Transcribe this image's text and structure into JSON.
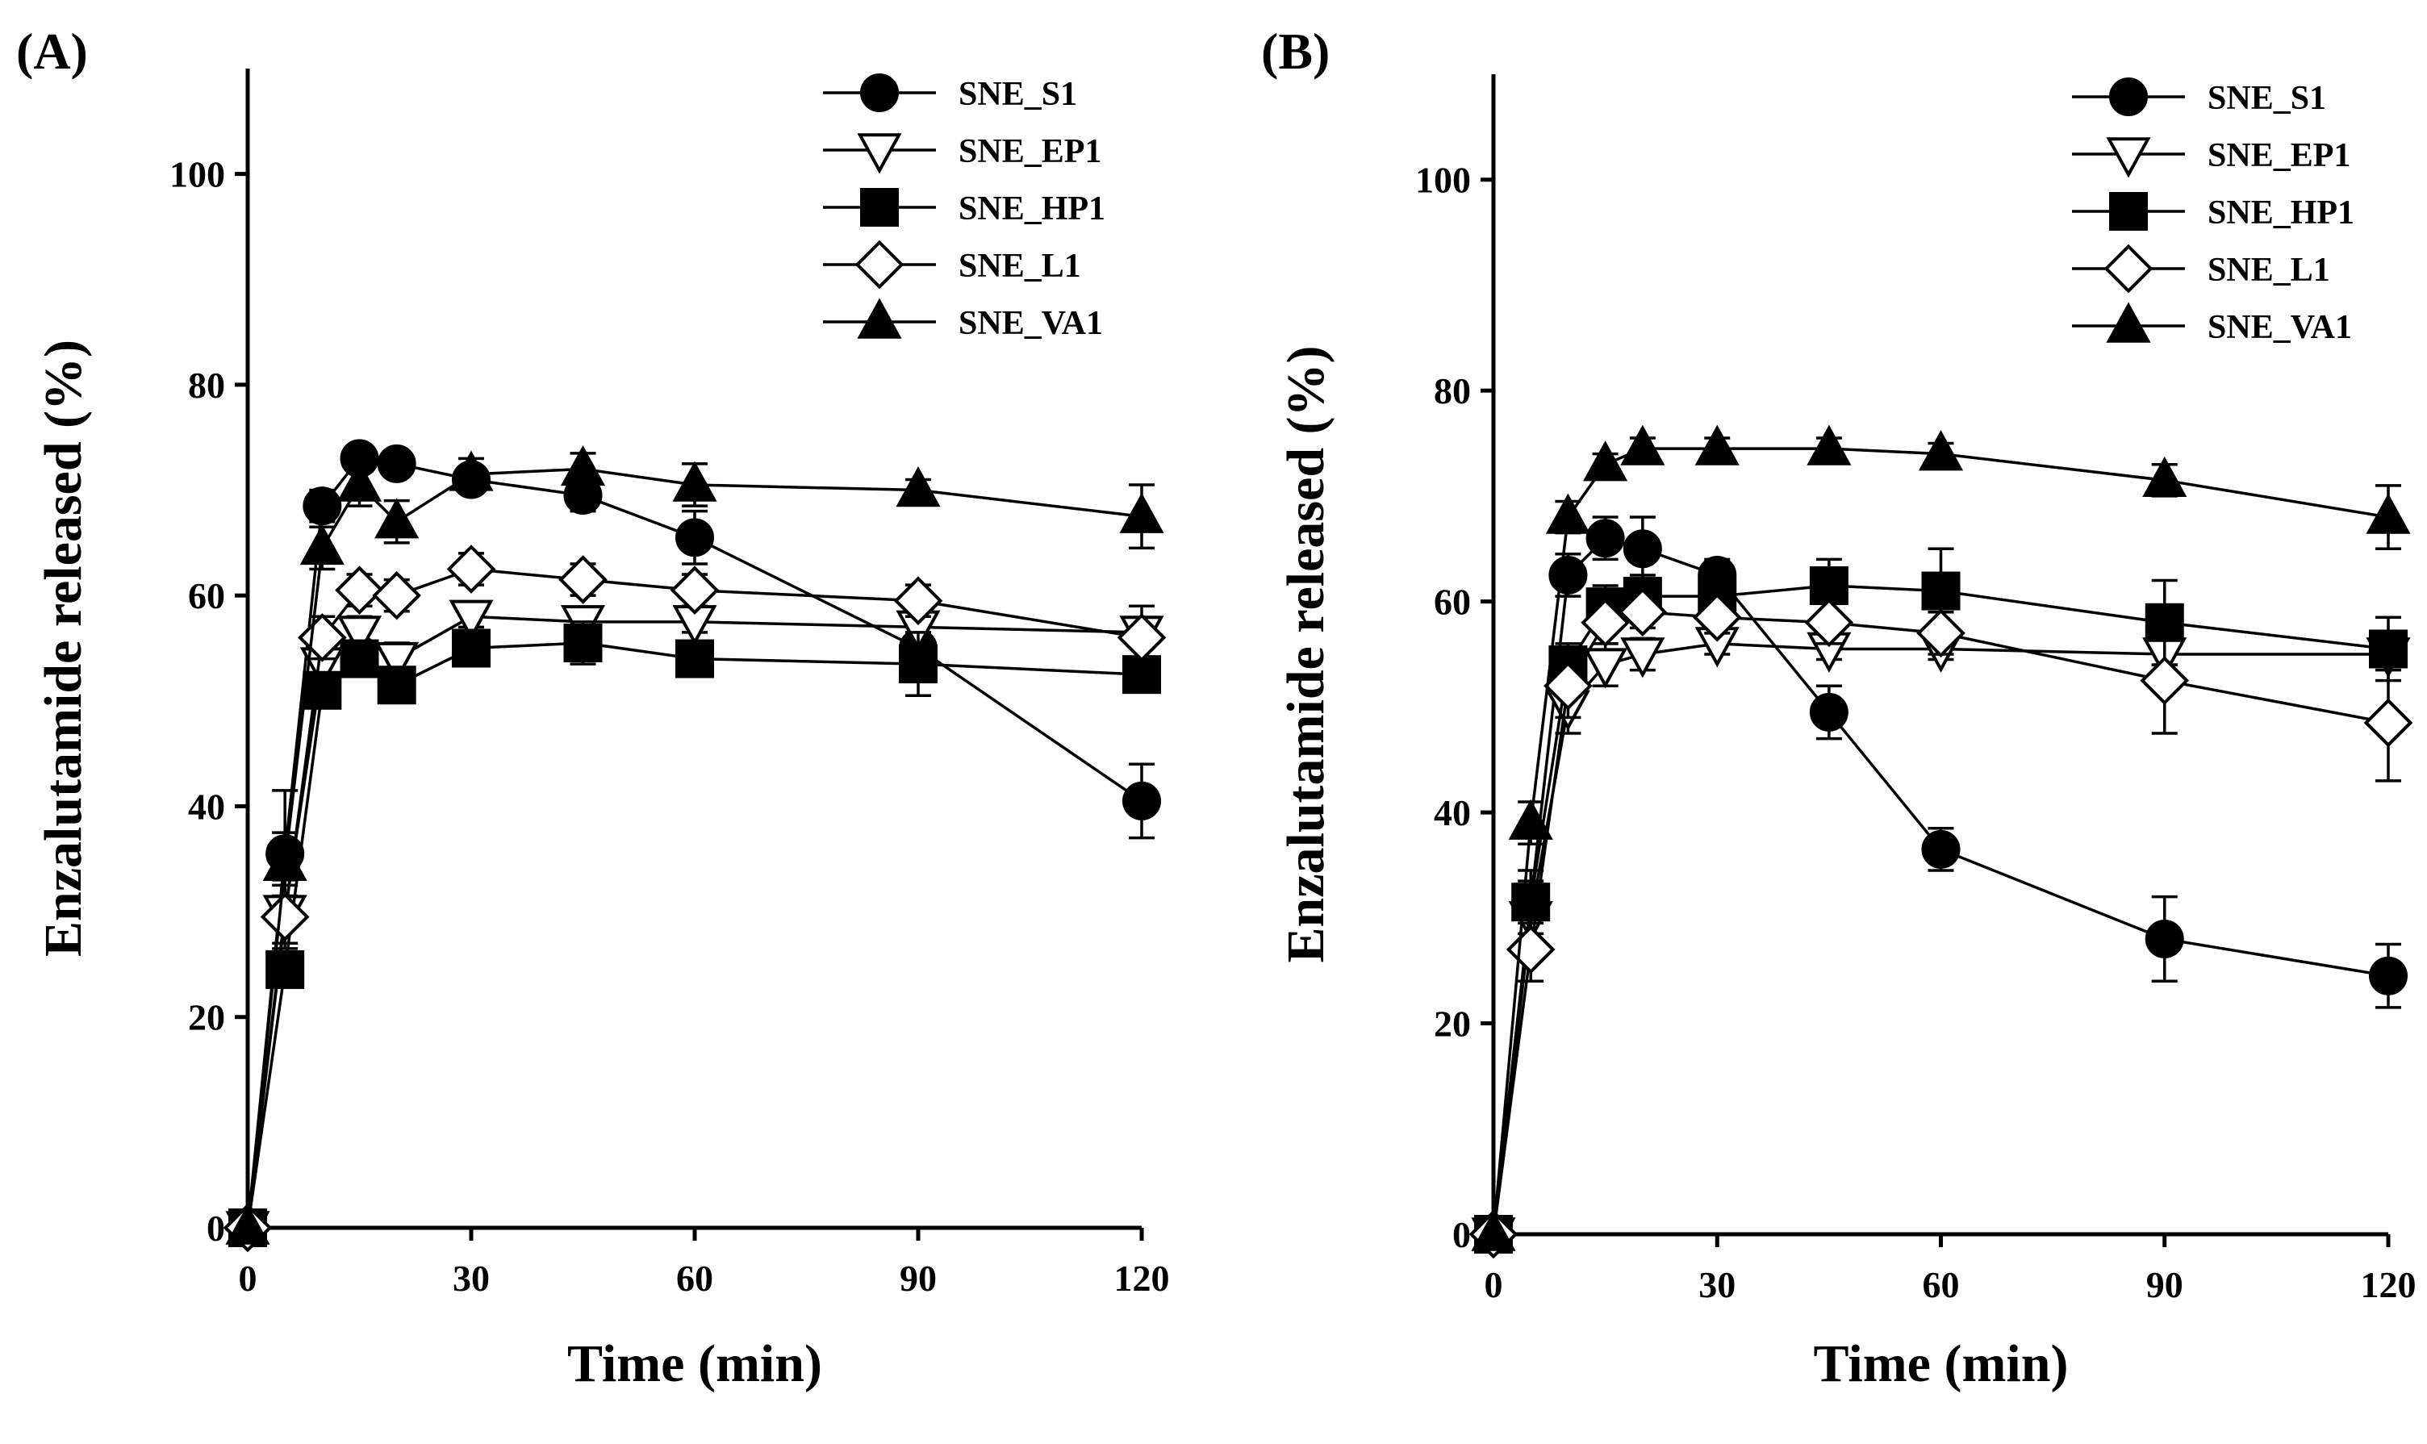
{
  "chart_data": [
    {
      "type": "line",
      "panel_label": "(A)",
      "title": "",
      "xlabel": "Time (min)",
      "ylabel": "Enzalutamide released (%)",
      "xlim": [
        0,
        120
      ],
      "ylim": [
        0,
        110
      ],
      "x_ticks": [
        "0",
        "30",
        "60",
        "90",
        "120"
      ],
      "y_ticks": [
        "0",
        "20",
        "40",
        "60",
        "80",
        "100"
      ],
      "legend_position": "top-right",
      "x": [
        0,
        5,
        10,
        15,
        20,
        30,
        45,
        60,
        90,
        120
      ],
      "series": [
        {
          "name": "SNE_S1",
          "marker": "circle-filled",
          "values": [
            0,
            35.5,
            68.5,
            73,
            72.5,
            71,
            69.5,
            65.5,
            55,
            40.5
          ],
          "errors": [
            0,
            6,
            1.5,
            1,
            1,
            1,
            1.5,
            2.5,
            2.5,
            3.5
          ]
        },
        {
          "name": "SNE_EP1",
          "marker": "triangle-down-open",
          "values": [
            0,
            30,
            53.5,
            56.5,
            54,
            58,
            57.5,
            57.5,
            57,
            56.5
          ],
          "errors": [
            0,
            3,
            2,
            1.5,
            1.5,
            1,
            1,
            1,
            1,
            1
          ]
        },
        {
          "name": "SNE_HP1",
          "marker": "square-filled",
          "values": [
            0,
            24.5,
            51,
            54,
            51.5,
            55,
            55.5,
            54,
            53.5,
            52.5
          ],
          "errors": [
            0,
            1,
            1.5,
            1.5,
            1,
            1.5,
            2,
            1,
            3,
            1
          ]
        },
        {
          "name": "SNE_L1",
          "marker": "diamond-open",
          "values": [
            0,
            29.5,
            56,
            60.5,
            60,
            62.5,
            61.5,
            60.5,
            59.5,
            56
          ],
          "errors": [
            0,
            3,
            2,
            1.5,
            1.5,
            1.5,
            1.5,
            1.5,
            1.5,
            3
          ]
        },
        {
          "name": "SNE_VA1",
          "marker": "triangle-up-filled",
          "values": [
            0,
            34.5,
            64.5,
            70.5,
            67,
            71.5,
            72,
            70.5,
            70,
            67.5
          ],
          "errors": [
            0,
            3,
            2,
            2,
            2,
            1.5,
            1.5,
            2,
            1,
            3
          ]
        }
      ]
    },
    {
      "type": "line",
      "panel_label": "(B)",
      "title": "",
      "xlabel": "Time (min)",
      "ylabel": "Enzalutamide released (%)",
      "xlim": [
        0,
        120
      ],
      "ylim": [
        0,
        110
      ],
      "x_ticks": [
        "0",
        "30",
        "60",
        "90",
        "120"
      ],
      "y_ticks": [
        "0",
        "20",
        "40",
        "60",
        "80",
        "100"
      ],
      "legend_position": "top-right",
      "x": [
        0,
        5,
        10,
        15,
        20,
        30,
        45,
        60,
        90,
        120
      ],
      "series": [
        {
          "name": "SNE_S1",
          "marker": "circle-filled",
          "values": [
            0,
            31.5,
            62.5,
            66,
            65,
            62.5,
            49.5,
            36.5,
            28,
            24.5
          ],
          "errors": [
            0,
            3,
            2,
            2,
            3,
            1.5,
            2.5,
            2,
            4,
            3
          ]
        },
        {
          "name": "SNE_EP1",
          "marker": "triangle-down-open",
          "values": [
            0,
            30,
            50,
            54,
            55,
            56,
            55.5,
            55.5,
            55,
            55
          ],
          "errors": [
            0,
            3,
            2.5,
            2,
            1.5,
            1,
            1,
            1,
            1,
            1.5
          ]
        },
        {
          "name": "SNE_HP1",
          "marker": "square-filled",
          "values": [
            0,
            31.5,
            54,
            59.5,
            60.5,
            60.5,
            61.5,
            61,
            58,
            55.5
          ],
          "errors": [
            0,
            2,
            2,
            2,
            2,
            1.5,
            2.5,
            4,
            4,
            3
          ]
        },
        {
          "name": "SNE_L1",
          "marker": "diamond-open",
          "values": [
            0,
            27,
            52,
            58,
            59,
            58.5,
            58,
            57,
            52.5,
            48.5
          ],
          "errors": [
            0,
            3,
            3,
            2,
            1.5,
            1.5,
            2,
            2,
            5,
            5.5
          ]
        },
        {
          "name": "SNE_VA1",
          "marker": "triangle-up-filled",
          "values": [
            0,
            39,
            68,
            73,
            74.5,
            74.5,
            74.5,
            74,
            71.5,
            68
          ],
          "errors": [
            0,
            2,
            1.5,
            1,
            1,
            1,
            1,
            1,
            1.5,
            3
          ]
        }
      ]
    }
  ]
}
